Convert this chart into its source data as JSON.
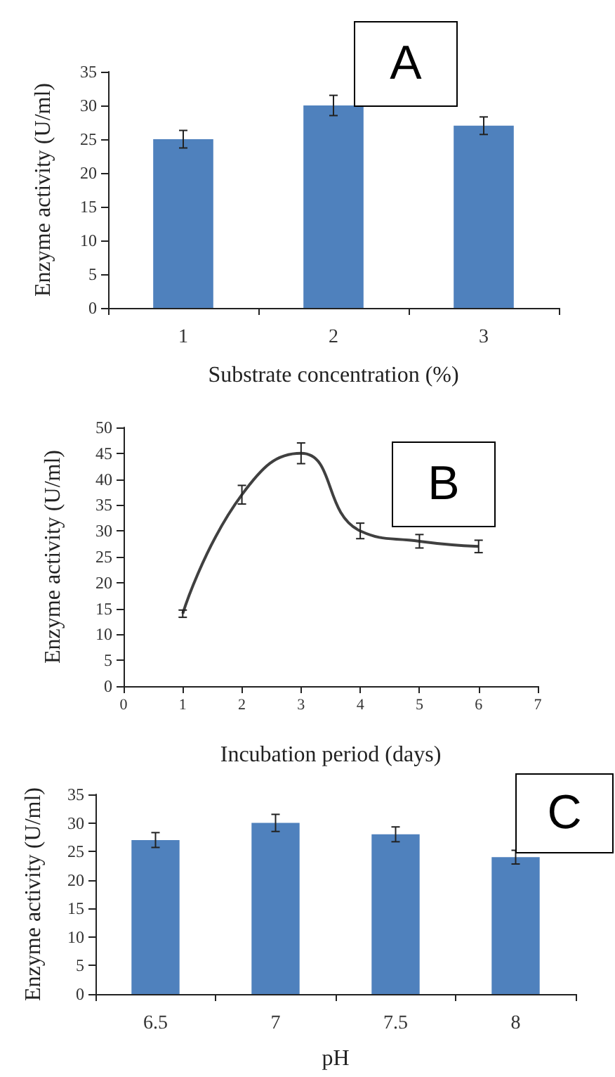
{
  "chart_data": [
    {
      "type": "bar",
      "xlabel": "Substrate concentration (%)",
      "ylabel": "Enzyme activity (U/ml)",
      "categories": [
        "1",
        "2",
        "3"
      ],
      "values": [
        25,
        30,
        27
      ],
      "errors": [
        1.3,
        1.5,
        1.3
      ],
      "color": "#4f81bd",
      "ylim": [
        0,
        35
      ],
      "yticks": [
        0,
        5,
        10,
        15,
        20,
        25,
        30,
        35
      ],
      "annotations": [
        "A"
      ]
    },
    {
      "type": "line",
      "xlabel": "Incubation period (days)",
      "ylabel": "Enzyme activity (U/ml)",
      "x": [
        1,
        2,
        3,
        4,
        5,
        6
      ],
      "values": [
        14,
        37,
        45,
        30,
        28,
        27
      ],
      "errors": [
        0.7,
        1.8,
        2,
        1.5,
        1.3,
        1.2
      ],
      "color": "#404040",
      "marker": "none",
      "xlim": [
        0,
        7
      ],
      "xticks": [
        0,
        1,
        2,
        3,
        4,
        5,
        6,
        7
      ],
      "ylim": [
        0,
        50
      ],
      "yticks": [
        0,
        5,
        10,
        15,
        20,
        25,
        30,
        35,
        40,
        45,
        50
      ],
      "annotations": [
        "B"
      ]
    },
    {
      "type": "bar",
      "xlabel": "pH",
      "ylabel": "Enzyme activity (U/ml)",
      "categories": [
        "6.5",
        "7",
        "7.5",
        "8"
      ],
      "values": [
        27,
        30,
        28,
        24
      ],
      "errors": [
        1.3,
        1.5,
        1.3,
        1.2
      ],
      "color": "#4f81bd",
      "ylim": [
        0,
        35
      ],
      "yticks": [
        0,
        5,
        10,
        15,
        20,
        25,
        30,
        35
      ],
      "annotations": [
        "C"
      ]
    }
  ]
}
